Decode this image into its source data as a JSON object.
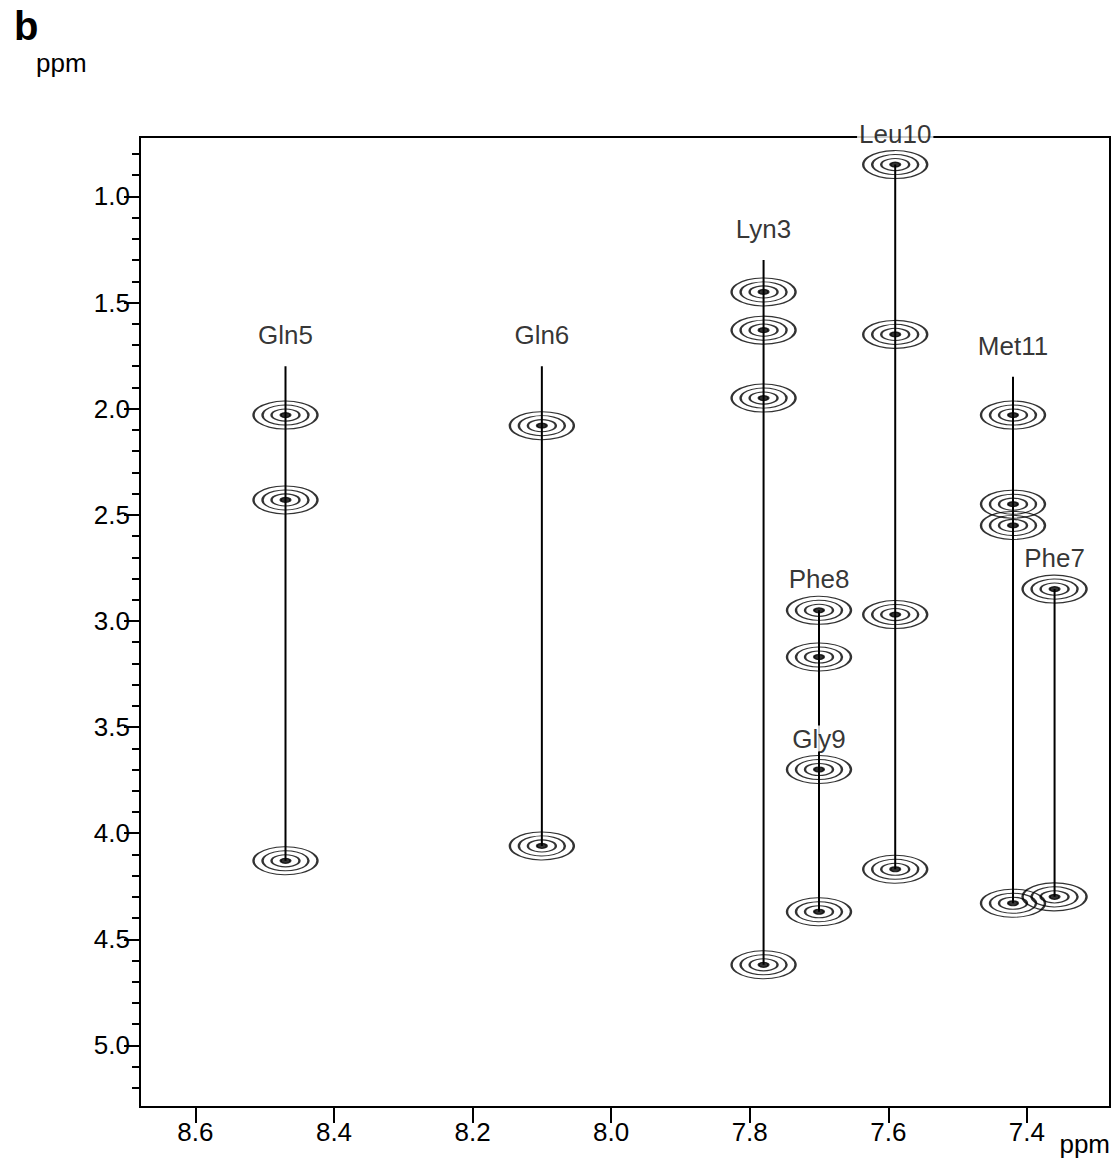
{
  "chart_data": {
    "type": "contour",
    "panel": "b",
    "xlabel": "ppm",
    "ylabel": "ppm",
    "xlim": [
      8.68,
      7.28
    ],
    "ylim": [
      5.29,
      0.72
    ],
    "xticks": [
      8.6,
      8.4,
      8.2,
      {
        "value": 8,
        "label": "8.0"
      },
      7.8,
      7.6,
      7.4
    ],
    "yticks": [
      {
        "value": 1,
        "label": "1.0"
      },
      1.5,
      {
        "value": 2,
        "label": "2.0"
      },
      2.5,
      {
        "value": 3,
        "label": "3.0"
      },
      3.5,
      {
        "value": 4,
        "label": "4.0"
      },
      4.5,
      {
        "value": 5,
        "label": "5.0"
      }
    ],
    "grid": false,
    "color": "#000000",
    "spin_systems": [
      {
        "name": "Gln5",
        "x": 8.47,
        "line": [
          1.8,
          4.13
        ],
        "peaks": [
          2.03,
          2.43,
          4.13
        ]
      },
      {
        "name": "Gln6",
        "x": 8.1,
        "line": [
          1.8,
          4.06
        ],
        "peaks": [
          2.08,
          4.06
        ]
      },
      {
        "name": "Lyn3",
        "x": 7.78,
        "line": [
          1.3,
          4.62
        ],
        "peaks": [
          1.45,
          1.63,
          1.95,
          4.62
        ]
      },
      {
        "name": "Phe8",
        "x": 7.7,
        "line": [
          2.95,
          4.37
        ],
        "peaks": [
          2.95,
          3.17,
          4.37
        ]
      },
      {
        "name": "Gly9",
        "x": 7.7,
        "peaks": [
          3.7
        ]
      },
      {
        "name": "Leu10",
        "x": 7.59,
        "line": [
          0.85,
          4.17
        ],
        "peaks": [
          0.85,
          1.65,
          2.97,
          4.17
        ]
      },
      {
        "name": "Met11",
        "x": 7.42,
        "line": [
          1.85,
          4.33
        ],
        "peaks": [
          2.03,
          2.45,
          2.55,
          4.33
        ]
      },
      {
        "name": "Phe7",
        "x": 7.36,
        "line": [
          2.85,
          4.3
        ],
        "peaks": [
          2.85,
          4.3
        ]
      }
    ]
  }
}
